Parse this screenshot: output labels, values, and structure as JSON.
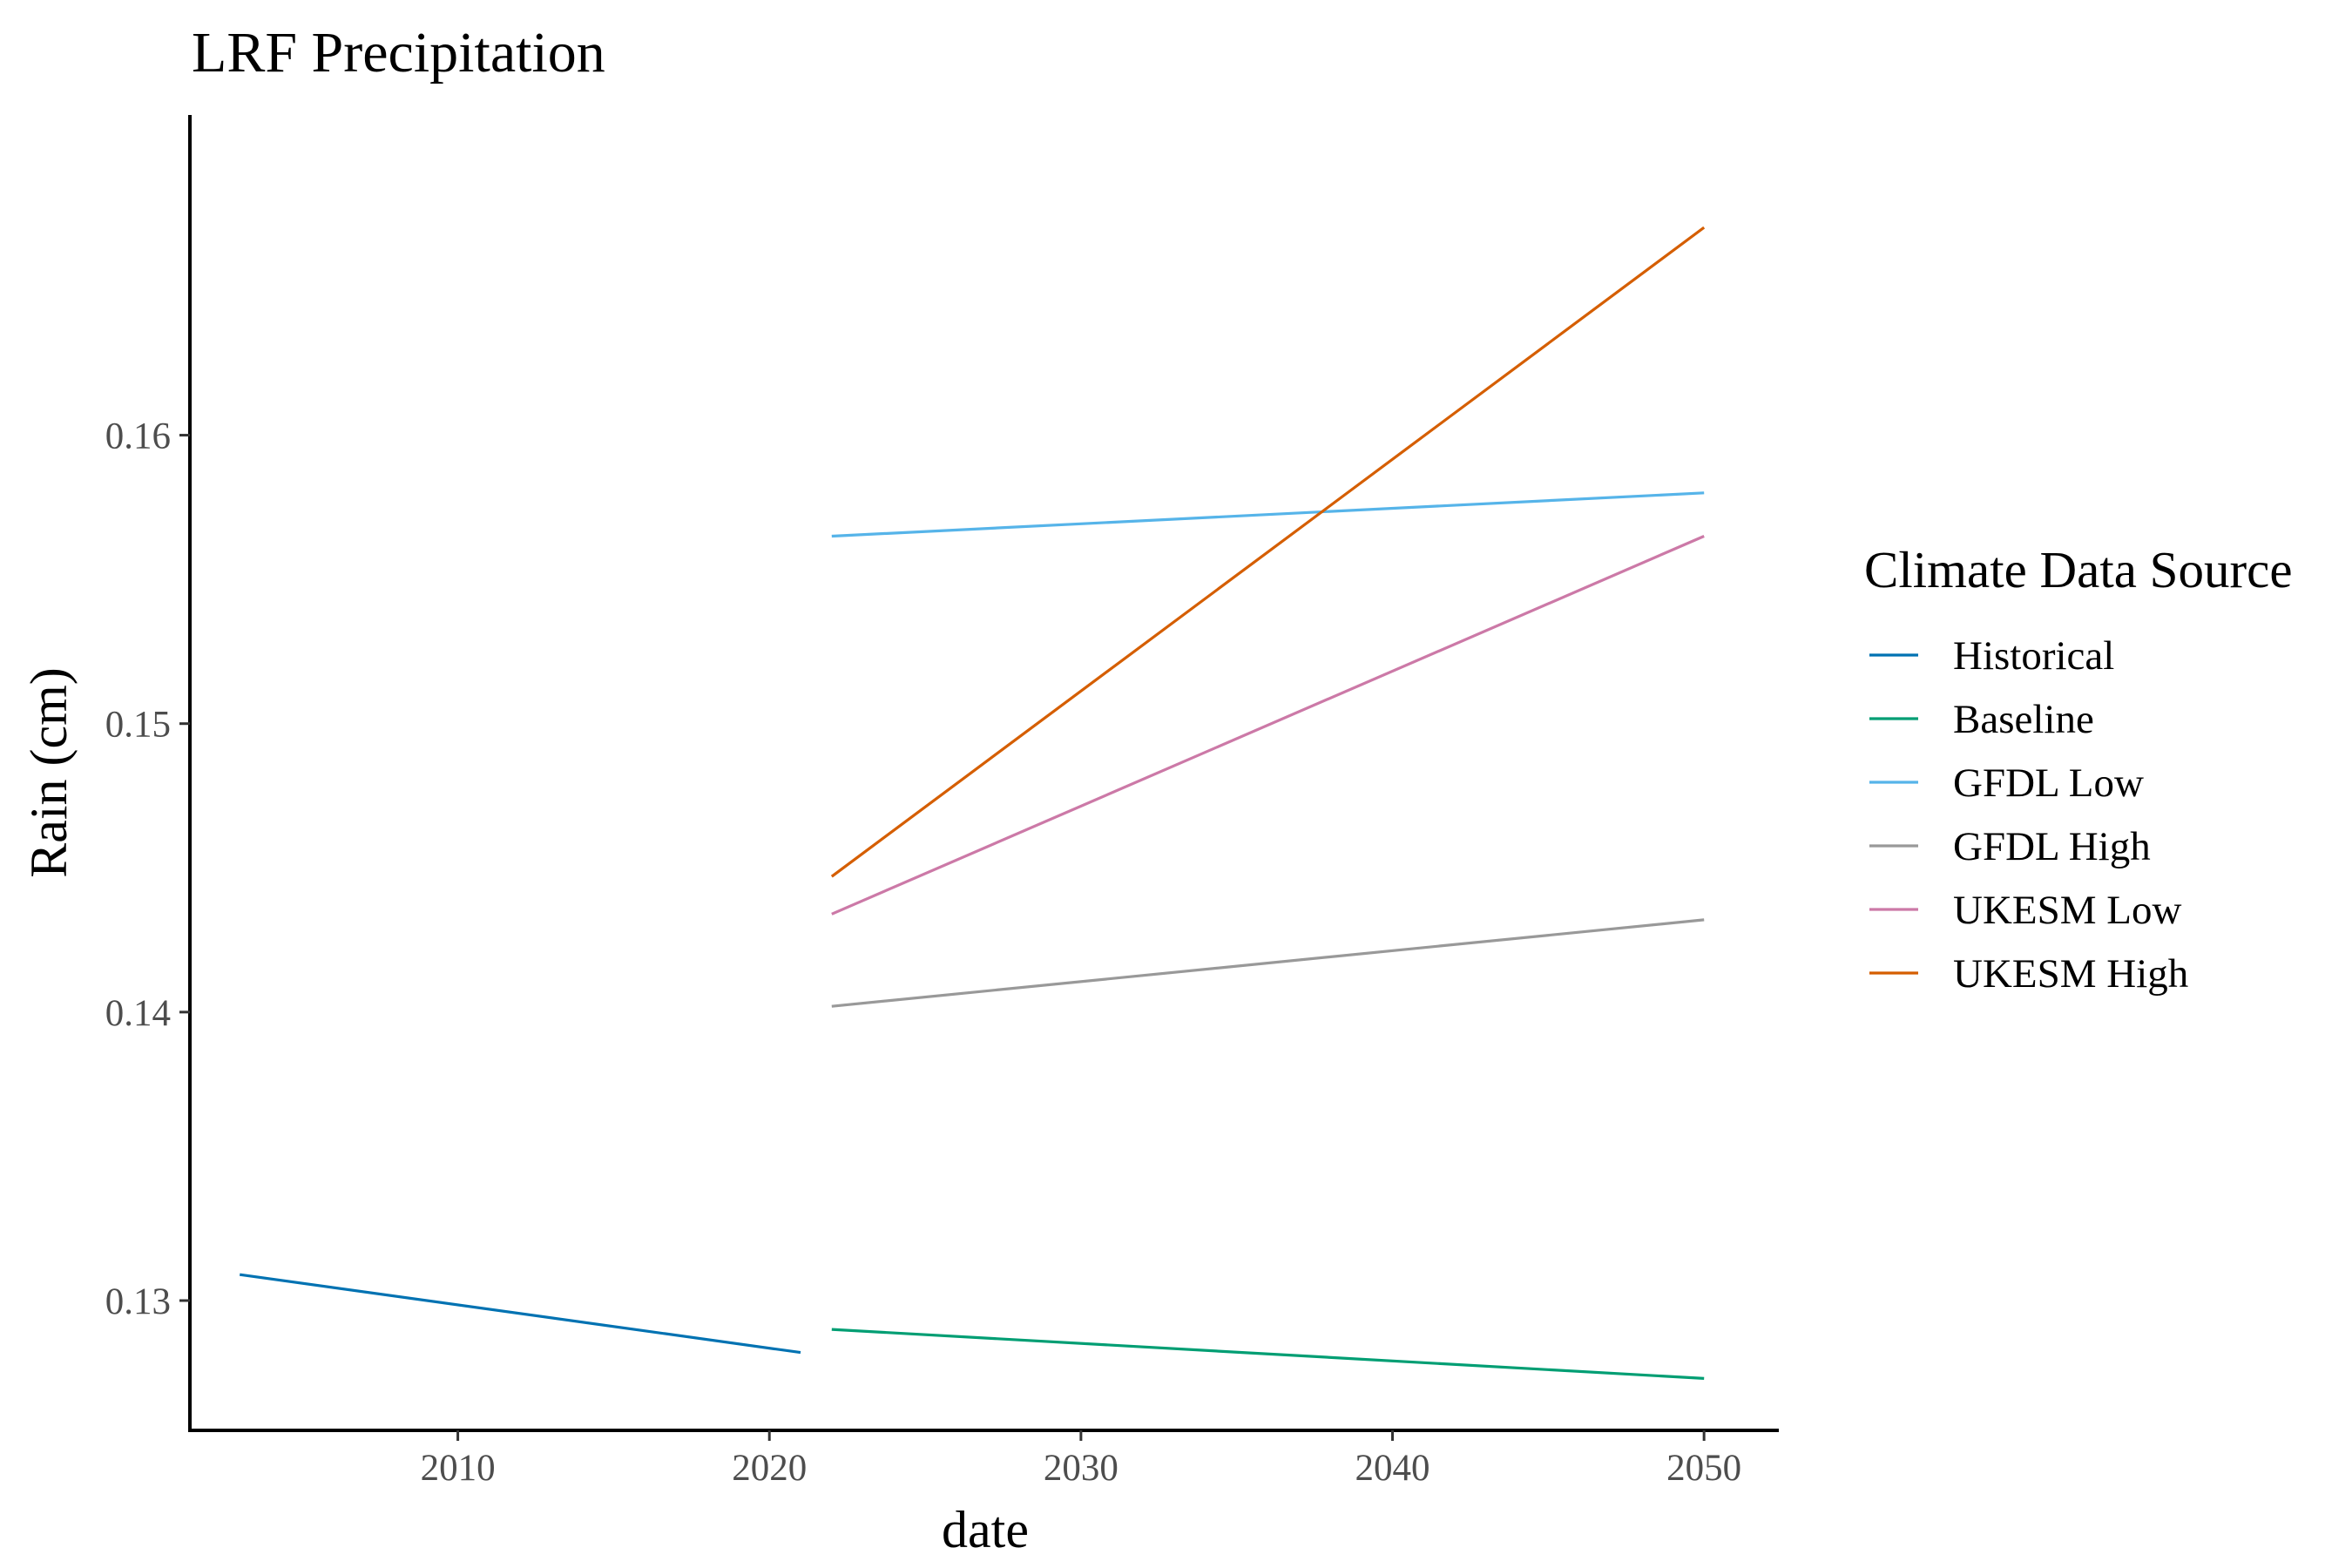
{
  "chart_data": {
    "type": "line",
    "title": "LRF Precipitation",
    "xlabel": "date",
    "ylabel": "Rain (cm)",
    "xlim": [
      2001.4,
      2052.4
    ],
    "ylim": [
      0.1255,
      0.1711
    ],
    "x_ticks": [
      {
        "value": 2010,
        "label": "2010"
      },
      {
        "value": 2020,
        "label": "2020"
      },
      {
        "value": 2030,
        "label": "2030"
      },
      {
        "value": 2040,
        "label": "2040"
      },
      {
        "value": 2050,
        "label": "2050"
      }
    ],
    "y_ticks": [
      {
        "value": 0.13,
        "label": "0.13"
      },
      {
        "value": 0.14,
        "label": "0.14"
      },
      {
        "value": 0.15,
        "label": "0.15"
      },
      {
        "value": 0.16,
        "label": "0.16"
      }
    ],
    "grid": false,
    "legend": {
      "title": "Climate Data Source",
      "position": "right"
    },
    "series": [
      {
        "name": "Historical",
        "color": "#0072B2",
        "x": [
          2003,
          2021
        ],
        "y": [
          0.1309,
          0.1282
        ]
      },
      {
        "name": "Baseline",
        "color": "#009E73",
        "x": [
          2022,
          2050
        ],
        "y": [
          0.129,
          0.1273
        ]
      },
      {
        "name": "GFDL Low",
        "color": "#56B4E9",
        "x": [
          2022,
          2050
        ],
        "y": [
          0.1565,
          0.158
        ]
      },
      {
        "name": "GFDL High",
        "color": "#999999",
        "x": [
          2022,
          2050
        ],
        "y": [
          0.1402,
          0.1432
        ]
      },
      {
        "name": "UKESM Low",
        "color": "#CC79A7",
        "x": [
          2022,
          2050
        ],
        "y": [
          0.1434,
          0.1565
        ]
      },
      {
        "name": "UKESM High",
        "color": "#D55E00",
        "x": [
          2022,
          2050
        ],
        "y": [
          0.1447,
          0.1672
        ]
      }
    ]
  }
}
